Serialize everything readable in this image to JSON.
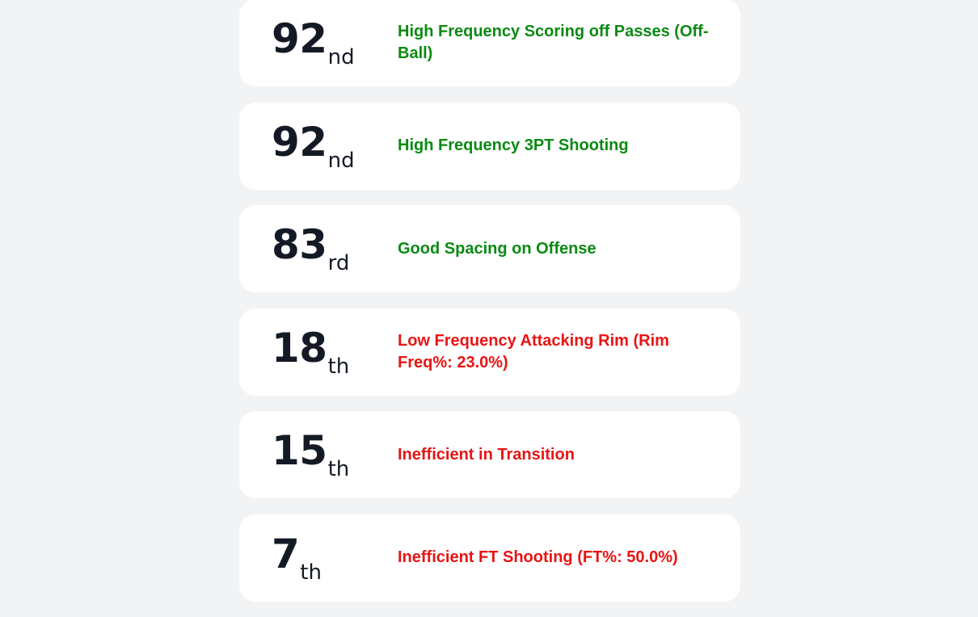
{
  "cards": [
    {
      "percentile": "92",
      "suffix": "nd",
      "label": "High Frequency Scoring off Passes (Off-Ball)",
      "tone": "green"
    },
    {
      "percentile": "92",
      "suffix": "nd",
      "label": "High Frequency 3PT Shooting",
      "tone": "green"
    },
    {
      "percentile": "83",
      "suffix": "rd",
      "label": "Good Spacing on Offense",
      "tone": "green"
    },
    {
      "percentile": "18",
      "suffix": "th",
      "label": "Low Frequency Attacking Rim (Rim Freq%: 23.0%)",
      "tone": "red"
    },
    {
      "percentile": "15",
      "suffix": "th",
      "label": "Inefficient in Transition",
      "tone": "red"
    },
    {
      "percentile": "7",
      "suffix": "th",
      "label": "Inefficient FT Shooting (FT%: 50.0%)",
      "tone": "red"
    }
  ],
  "colors": {
    "positive": "#0a8a12",
    "negative": "#e81414",
    "card_bg": "#ffffff",
    "page_bg": "#f2f3f5",
    "number": "#141a25"
  }
}
